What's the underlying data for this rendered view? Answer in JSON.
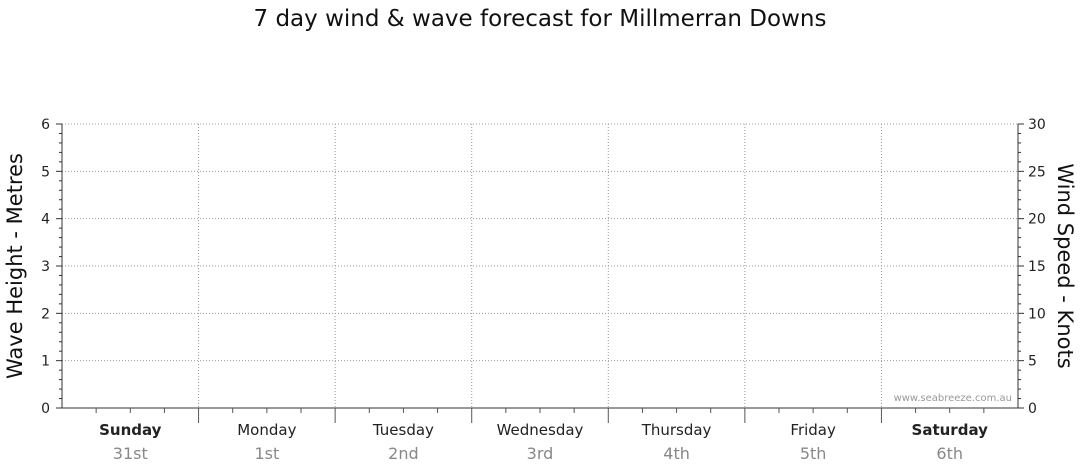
{
  "chart_data": {
    "type": "line",
    "title": "7 day wind & wave forecast for Millmerran Downs",
    "ylabel_left": "Wave Height - Metres",
    "ylabel_right": "Wind Speed - Knots",
    "ylim_left": [
      0,
      6
    ],
    "ylim_right": [
      0,
      30
    ],
    "yticks_left": [
      "0",
      "1",
      "2",
      "3",
      "4",
      "5",
      "6"
    ],
    "yticks_right": [
      "0",
      "5",
      "10",
      "15",
      "20",
      "25",
      "30"
    ],
    "grid": true,
    "days": [
      {
        "name": "Sunday",
        "date": "31st",
        "bold": true
      },
      {
        "name": "Monday",
        "date": "1st",
        "bold": false
      },
      {
        "name": "Tuesday",
        "date": "2nd",
        "bold": false
      },
      {
        "name": "Wednesday",
        "date": "3rd",
        "bold": false
      },
      {
        "name": "Thursday",
        "date": "4th",
        "bold": false
      },
      {
        "name": "Friday",
        "date": "5th",
        "bold": false
      },
      {
        "name": "Saturday",
        "date": "6th",
        "bold": true
      }
    ],
    "series": [],
    "watermark": "www.seabreeze.com.au"
  }
}
